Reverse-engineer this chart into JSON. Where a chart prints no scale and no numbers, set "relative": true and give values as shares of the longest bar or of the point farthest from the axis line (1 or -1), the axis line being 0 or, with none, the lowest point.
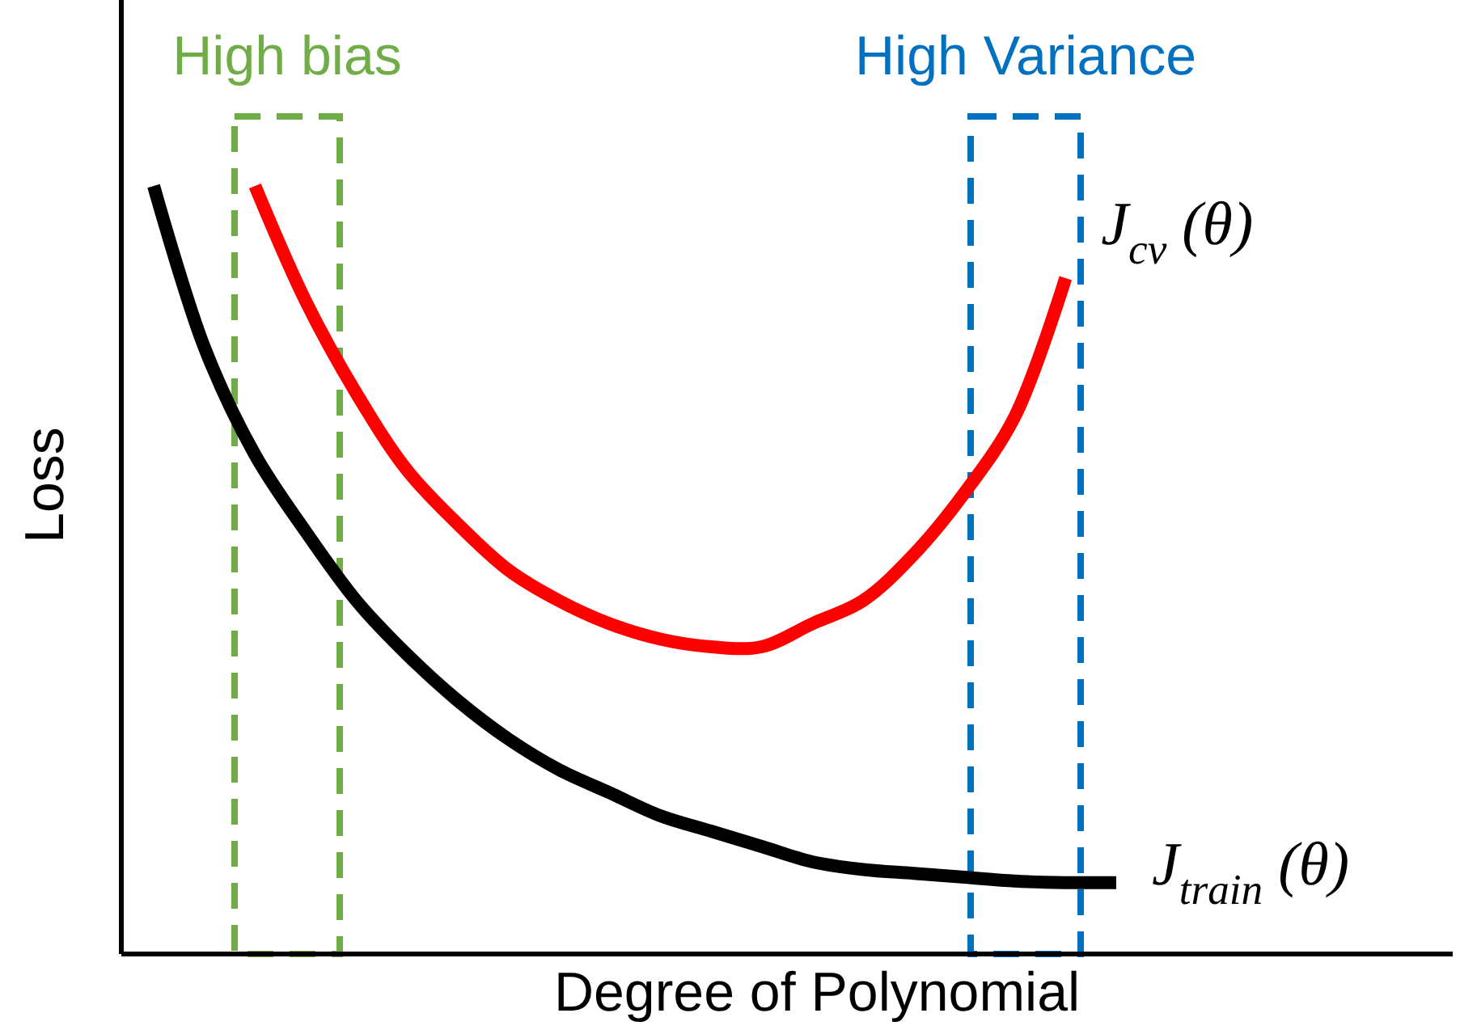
{
  "chart_data": {
    "type": "line",
    "relative": true,
    "xlabel": "Degree of Polynomial",
    "ylabel": "Loss",
    "tick_labels": false,
    "categories": [
      null,
      null,
      null,
      null,
      null,
      null,
      null,
      null,
      null,
      null,
      null,
      null,
      null,
      null,
      null,
      null,
      null,
      null,
      null,
      null
    ],
    "series": [
      {
        "name": "J$_{cv}$(θ)",
        "color": "#ff0000",
        "values": [
          null,
          null,
          1.0,
          0.85,
          0.73,
          0.63,
          0.56,
          0.5,
          0.46,
          0.43,
          0.41,
          0.4,
          0.4,
          0.43,
          0.46,
          0.52,
          0.6,
          0.7,
          0.88,
          null
        ]
      },
      {
        "name": "J$_{train}$(θ)",
        "color": "#000000",
        "values": [
          1.0,
          0.79,
          0.65,
          0.55,
          0.46,
          0.39,
          0.33,
          0.28,
          0.24,
          0.21,
          0.18,
          0.16,
          0.14,
          0.12,
          0.11,
          0.105,
          0.1,
          0.095,
          0.093,
          0.093
        ]
      }
    ],
    "annotations": [
      "High bias",
      "High Variance"
    ]
  }
}
